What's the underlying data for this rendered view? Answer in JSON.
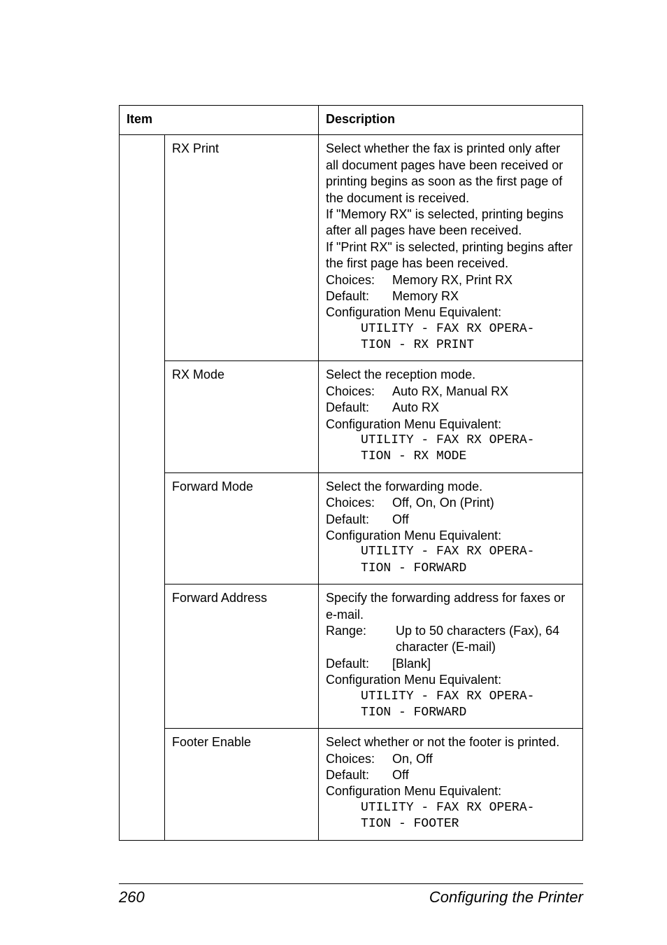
{
  "table": {
    "headers": {
      "item": "Item",
      "description": "Description"
    },
    "rows": [
      {
        "item": "RX Print",
        "desc_lines": [
          "Select whether the fax is printed only after all document pages have been received or printing begins as soon as the first page of the document is received.",
          "If \"Memory RX\" is selected, printing begins after all pages have been received.",
          "If \"Print RX\" is selected, printing begins after the first page has been received."
        ],
        "choices": "Memory RX, Print RX",
        "default": "Memory RX",
        "config_label": "Configuration Menu Equivalent:",
        "config_lines": [
          "UTILITY - FAX RX OPERA-",
          "TION - RX PRINT"
        ]
      },
      {
        "item": "RX Mode",
        "desc_lines": [
          "Select the reception mode."
        ],
        "choices": "Auto RX, Manual RX",
        "default": "Auto RX",
        "config_label": "Configuration Menu Equivalent:",
        "config_lines": [
          "UTILITY - FAX RX OPERA-",
          "TION - RX MODE"
        ]
      },
      {
        "item": "Forward Mode",
        "desc_lines": [
          "Select the forwarding mode."
        ],
        "choices": "Off, On, On (Print)",
        "default": "Off",
        "config_label": "Configuration Menu Equivalent:",
        "config_lines": [
          "UTILITY - FAX RX OPERA-",
          "TION - FORWARD"
        ]
      },
      {
        "item": "Forward Address",
        "desc_lines": [
          "Specify the forwarding address for faxes or e-mail."
        ],
        "range_label": "Range:",
        "range": "Up to 50 characters (Fax), 64 character (E-mail)",
        "default": "[Blank]",
        "config_label": "Configuration Menu Equivalent:",
        "config_lines": [
          "UTILITY - FAX RX OPERA-",
          "TION - FORWARD"
        ]
      },
      {
        "item": "Footer Enable",
        "desc_lines": [
          "Select whether or not the footer is printed."
        ],
        "choices": "On, Off",
        "default": "Off",
        "config_label": "Configuration Menu Equivalent:",
        "config_lines": [
          "UTILITY - FAX RX OPERA-",
          "TION - FOOTER"
        ]
      }
    ]
  },
  "labels": {
    "choices": "Choices:",
    "default": "Default:",
    "range": "Range:"
  },
  "footer": {
    "page": "260",
    "title": "Configuring the Printer"
  }
}
